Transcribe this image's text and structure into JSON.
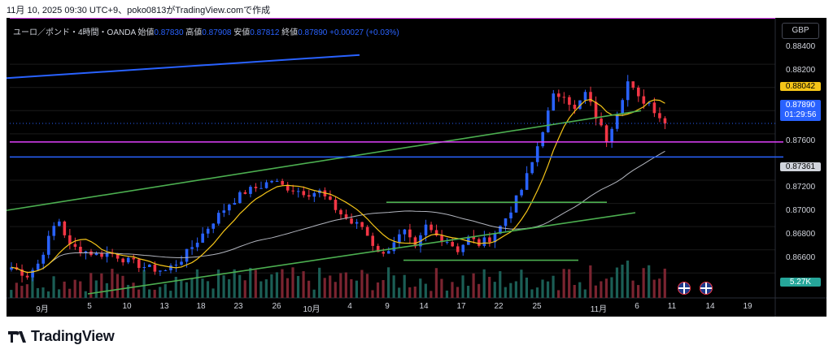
{
  "header": {
    "caption": "11月 10, 2025 09:30 UTC+9、poko0813がTradingView.comで作成"
  },
  "legend": {
    "symbol": "ユーロ／ポンド・4時間・OANDA",
    "open_label": "始値",
    "open": "0.87830",
    "high_label": "高値",
    "high": "0.87908",
    "low_label": "安値",
    "low": "0.87812",
    "close_label": "終値",
    "close": "0.87890",
    "change": "+0.00027 (+0.03%)"
  },
  "currency": "GBP",
  "price_tags": {
    "ma": "0.88042",
    "last": "0.87890",
    "countdown": "01:29:56",
    "ma_long": "0.87361",
    "volume": "5.27K"
  },
  "brand": "TradingView",
  "colors": {
    "up": "#2962ff",
    "down": "#f23645",
    "ma_fast": "#f5c518",
    "ma_slow": "#b2b5be",
    "trend": "#4caf50",
    "magenta": "#e040fb",
    "hline": "#2962ff"
  },
  "chart_data": {
    "type": "candlestick",
    "symbol": "EURGBP",
    "timeframe": "4h",
    "y_ticks": [
      "0.88400",
      "0.88200",
      "0.87600",
      "0.87200",
      "0.87000",
      "0.86800",
      "0.86600"
    ],
    "x_ticks": [
      "9月",
      "5",
      "10",
      "13",
      "18",
      "23",
      "26",
      "10月",
      "4",
      "9",
      "14",
      "17",
      "22",
      "25",
      "11月",
      "6",
      "11",
      "14",
      "19"
    ],
    "ylim": [
      0.8642,
      0.8852
    ],
    "price_path": [
      [
        0,
        0.8665
      ],
      [
        3,
        0.8658
      ],
      [
        5,
        0.8668
      ],
      [
        8,
        0.87
      ],
      [
        9,
        0.8705
      ],
      [
        11,
        0.8683
      ],
      [
        13,
        0.868
      ],
      [
        16,
        0.8676
      ],
      [
        19,
        0.8677
      ],
      [
        22,
        0.867
      ],
      [
        26,
        0.8664
      ],
      [
        29,
        0.8662
      ],
      [
        32,
        0.8672
      ],
      [
        35,
        0.8688
      ],
      [
        38,
        0.8705
      ],
      [
        41,
        0.872
      ],
      [
        44,
        0.873
      ],
      [
        47,
        0.8735
      ],
      [
        49,
        0.874
      ],
      [
        51,
        0.8735
      ],
      [
        54,
        0.8731
      ],
      [
        56,
        0.8729
      ],
      [
        58,
        0.873
      ],
      [
        60,
        0.872
      ],
      [
        62,
        0.8711
      ],
      [
        64,
        0.8703
      ],
      [
        66,
        0.87
      ],
      [
        68,
        0.8685
      ],
      [
        70,
        0.8675
      ],
      [
        72,
        0.8688
      ],
      [
        74,
        0.8695
      ],
      [
        76,
        0.868
      ],
      [
        78,
        0.87
      ],
      [
        80,
        0.8692
      ],
      [
        82,
        0.8688
      ],
      [
        84,
        0.868
      ],
      [
        86,
        0.869
      ],
      [
        88,
        0.8685
      ],
      [
        90,
        0.869
      ],
      [
        92,
        0.87
      ],
      [
        94,
        0.8715
      ],
      [
        96,
        0.8732
      ],
      [
        98,
        0.8755
      ],
      [
        100,
        0.8784
      ],
      [
        102,
        0.8812
      ],
      [
        104,
        0.8815
      ],
      [
        106,
        0.88
      ],
      [
        108,
        0.8815
      ],
      [
        110,
        0.8795
      ],
      [
        112,
        0.8775
      ],
      [
        114,
        0.88
      ],
      [
        116,
        0.8825
      ],
      [
        118,
        0.881
      ],
      [
        120,
        0.8807
      ],
      [
        122,
        0.8795
      ],
      [
        123,
        0.8789
      ]
    ],
    "volume": {
      "last": "5.27K"
    },
    "indicators": {
      "ma_fast": {
        "last": 0.88042
      },
      "ma_slow": {
        "last": 0.87361
      }
    },
    "horizontal_lines": [
      {
        "price": 0.8773,
        "color": "#e040fb"
      },
      {
        "price": 0.876,
        "color": "#2962ff"
      }
    ]
  }
}
